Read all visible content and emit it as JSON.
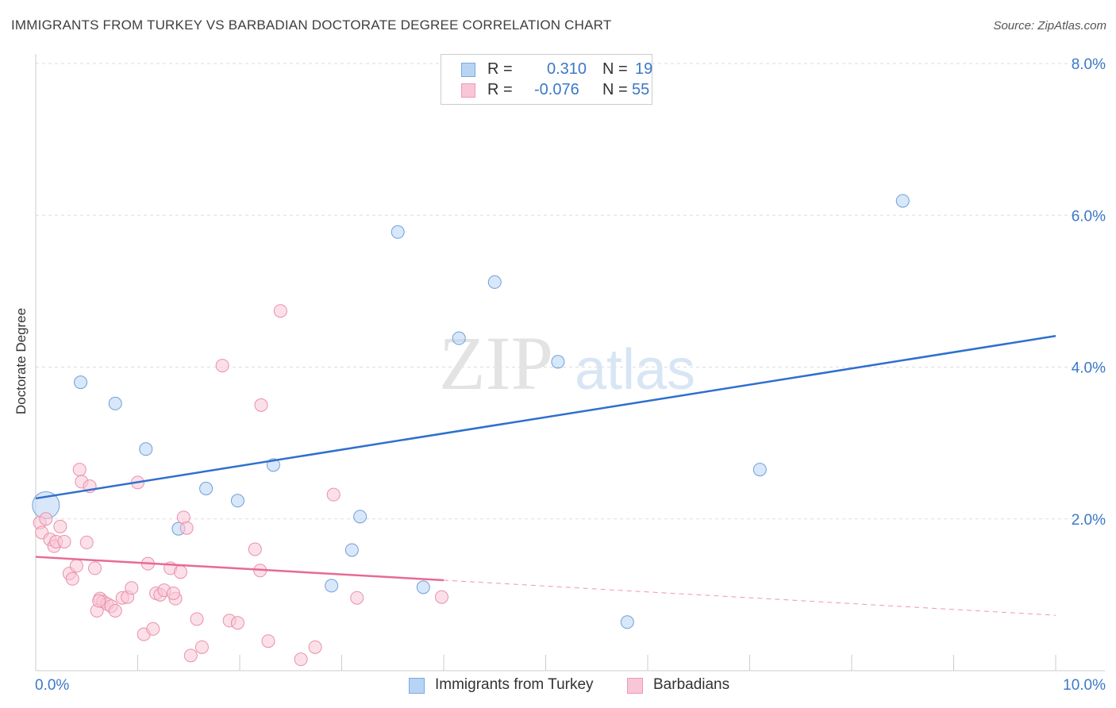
{
  "header": {
    "title": "IMMIGRANTS FROM TURKEY VS BARBADIAN DOCTORATE DEGREE CORRELATION CHART",
    "source": "Source: ZipAtlas.com"
  },
  "watermark": {
    "zip": "ZIP",
    "atlas": "atlas"
  },
  "legend": {
    "rows": [
      {
        "r_label": "R =",
        "r_value": "0.310",
        "n_label": "N =",
        "n_value": "19",
        "color": "#b8d4f5",
        "border": "#7aa8e0"
      },
      {
        "r_label": "R =",
        "r_value": "-0.076",
        "n_label": "N =",
        "n_value": "55",
        "color": "#f9c6d6",
        "border": "#ec9ab4"
      }
    ]
  },
  "bottom_legend": [
    {
      "label": "Immigrants from Turkey",
      "color": "#b8d4f5",
      "border": "#7aa8e0"
    },
    {
      "label": "Barbadians",
      "color": "#f9c6d6",
      "border": "#ec9ab4"
    }
  ],
  "chart_data": {
    "type": "scatter",
    "title": "IMMIGRANTS FROM TURKEY VS BARBADIAN DOCTORATE DEGREE CORRELATION CHART",
    "xlabel": "",
    "ylabel": "Doctorate Degree",
    "xlim": [
      0,
      10
    ],
    "ylim": [
      0,
      8
    ],
    "x_tick_labels": [
      {
        "value": 0,
        "label": "0.0%"
      },
      {
        "value": 10,
        "label": "10.0%"
      }
    ],
    "y_tick_labels": [
      {
        "value": 2,
        "label": "2.0%"
      },
      {
        "value": 4,
        "label": "4.0%"
      },
      {
        "value": 6,
        "label": "6.0%"
      },
      {
        "value": 8,
        "label": "8.0%"
      }
    ],
    "grid": true,
    "series": [
      {
        "name": "Immigrants from Turkey",
        "color": "#b8d4f5",
        "stroke": "#6f9fd8",
        "trend_color": "#2f6fcf",
        "trend": {
          "x0": 0,
          "y0": 2.27,
          "x1": 10,
          "y1": 4.41,
          "dashed_from": null
        },
        "points": [
          {
            "x": 0.1,
            "y": 2.18,
            "big": true
          },
          {
            "x": 0.44,
            "y": 3.8
          },
          {
            "x": 0.78,
            "y": 3.52
          },
          {
            "x": 1.08,
            "y": 2.92
          },
          {
            "x": 1.4,
            "y": 1.87
          },
          {
            "x": 1.67,
            "y": 2.4
          },
          {
            "x": 1.98,
            "y": 2.24
          },
          {
            "x": 2.33,
            "y": 2.71
          },
          {
            "x": 2.9,
            "y": 1.12
          },
          {
            "x": 3.1,
            "y": 1.59
          },
          {
            "x": 3.18,
            "y": 2.03
          },
          {
            "x": 3.55,
            "y": 5.78
          },
          {
            "x": 3.8,
            "y": 1.1
          },
          {
            "x": 4.15,
            "y": 4.38
          },
          {
            "x": 4.5,
            "y": 5.12
          },
          {
            "x": 5.12,
            "y": 4.07
          },
          {
            "x": 5.8,
            "y": 0.64
          },
          {
            "x": 7.1,
            "y": 2.65
          },
          {
            "x": 8.5,
            "y": 6.19
          }
        ]
      },
      {
        "name": "Barbadians",
        "color": "#f9c6d6",
        "stroke": "#e890ad",
        "trend_color": "#e86a94",
        "trend": {
          "x0": 0,
          "y0": 1.5,
          "x1": 10,
          "y1": 0.73,
          "dashed_from": 4.0
        },
        "points": [
          {
            "x": 0.04,
            "y": 1.95
          },
          {
            "x": 0.06,
            "y": 1.82
          },
          {
            "x": 0.1,
            "y": 2.0
          },
          {
            "x": 0.14,
            "y": 1.73
          },
          {
            "x": 0.18,
            "y": 1.64
          },
          {
            "x": 0.2,
            "y": 1.7
          },
          {
            "x": 0.24,
            "y": 1.9
          },
          {
            "x": 0.28,
            "y": 1.7
          },
          {
            "x": 0.33,
            "y": 1.28
          },
          {
            "x": 0.36,
            "y": 1.21
          },
          {
            "x": 0.4,
            "y": 1.38
          },
          {
            "x": 0.43,
            "y": 2.65
          },
          {
            "x": 0.45,
            "y": 2.49
          },
          {
            "x": 0.5,
            "y": 1.69
          },
          {
            "x": 0.53,
            "y": 2.43
          },
          {
            "x": 0.58,
            "y": 1.35
          },
          {
            "x": 0.6,
            "y": 0.79
          },
          {
            "x": 0.63,
            "y": 0.95
          },
          {
            "x": 0.66,
            "y": 0.91
          },
          {
            "x": 0.7,
            "y": 0.88
          },
          {
            "x": 0.74,
            "y": 0.85
          },
          {
            "x": 0.78,
            "y": 0.79
          },
          {
            "x": 0.85,
            "y": 0.96
          },
          {
            "x": 0.9,
            "y": 0.97
          },
          {
            "x": 0.94,
            "y": 1.09
          },
          {
            "x": 1.0,
            "y": 2.48
          },
          {
            "x": 1.06,
            "y": 0.48
          },
          {
            "x": 1.1,
            "y": 1.41
          },
          {
            "x": 1.15,
            "y": 0.55
          },
          {
            "x": 1.18,
            "y": 1.02
          },
          {
            "x": 1.22,
            "y": 1.0
          },
          {
            "x": 1.26,
            "y": 1.06
          },
          {
            "x": 1.32,
            "y": 1.35
          },
          {
            "x": 1.37,
            "y": 0.95
          },
          {
            "x": 1.42,
            "y": 1.3
          },
          {
            "x": 1.45,
            "y": 2.02
          },
          {
            "x": 1.48,
            "y": 1.88
          },
          {
            "x": 1.52,
            "y": 0.2
          },
          {
            "x": 1.58,
            "y": 0.68
          },
          {
            "x": 1.63,
            "y": 0.31
          },
          {
            "x": 1.83,
            "y": 4.02
          },
          {
            "x": 1.9,
            "y": 0.66
          },
          {
            "x": 1.98,
            "y": 0.63
          },
          {
            "x": 2.15,
            "y": 1.6
          },
          {
            "x": 2.2,
            "y": 1.32
          },
          {
            "x": 2.21,
            "y": 3.5
          },
          {
            "x": 2.28,
            "y": 0.39
          },
          {
            "x": 2.4,
            "y": 4.74
          },
          {
            "x": 2.6,
            "y": 0.15
          },
          {
            "x": 2.74,
            "y": 0.31
          },
          {
            "x": 2.92,
            "y": 2.32
          },
          {
            "x": 3.15,
            "y": 0.96
          },
          {
            "x": 3.98,
            "y": 0.97
          },
          {
            "x": 1.35,
            "y": 1.02
          },
          {
            "x": 0.62,
            "y": 0.92
          }
        ]
      }
    ]
  }
}
